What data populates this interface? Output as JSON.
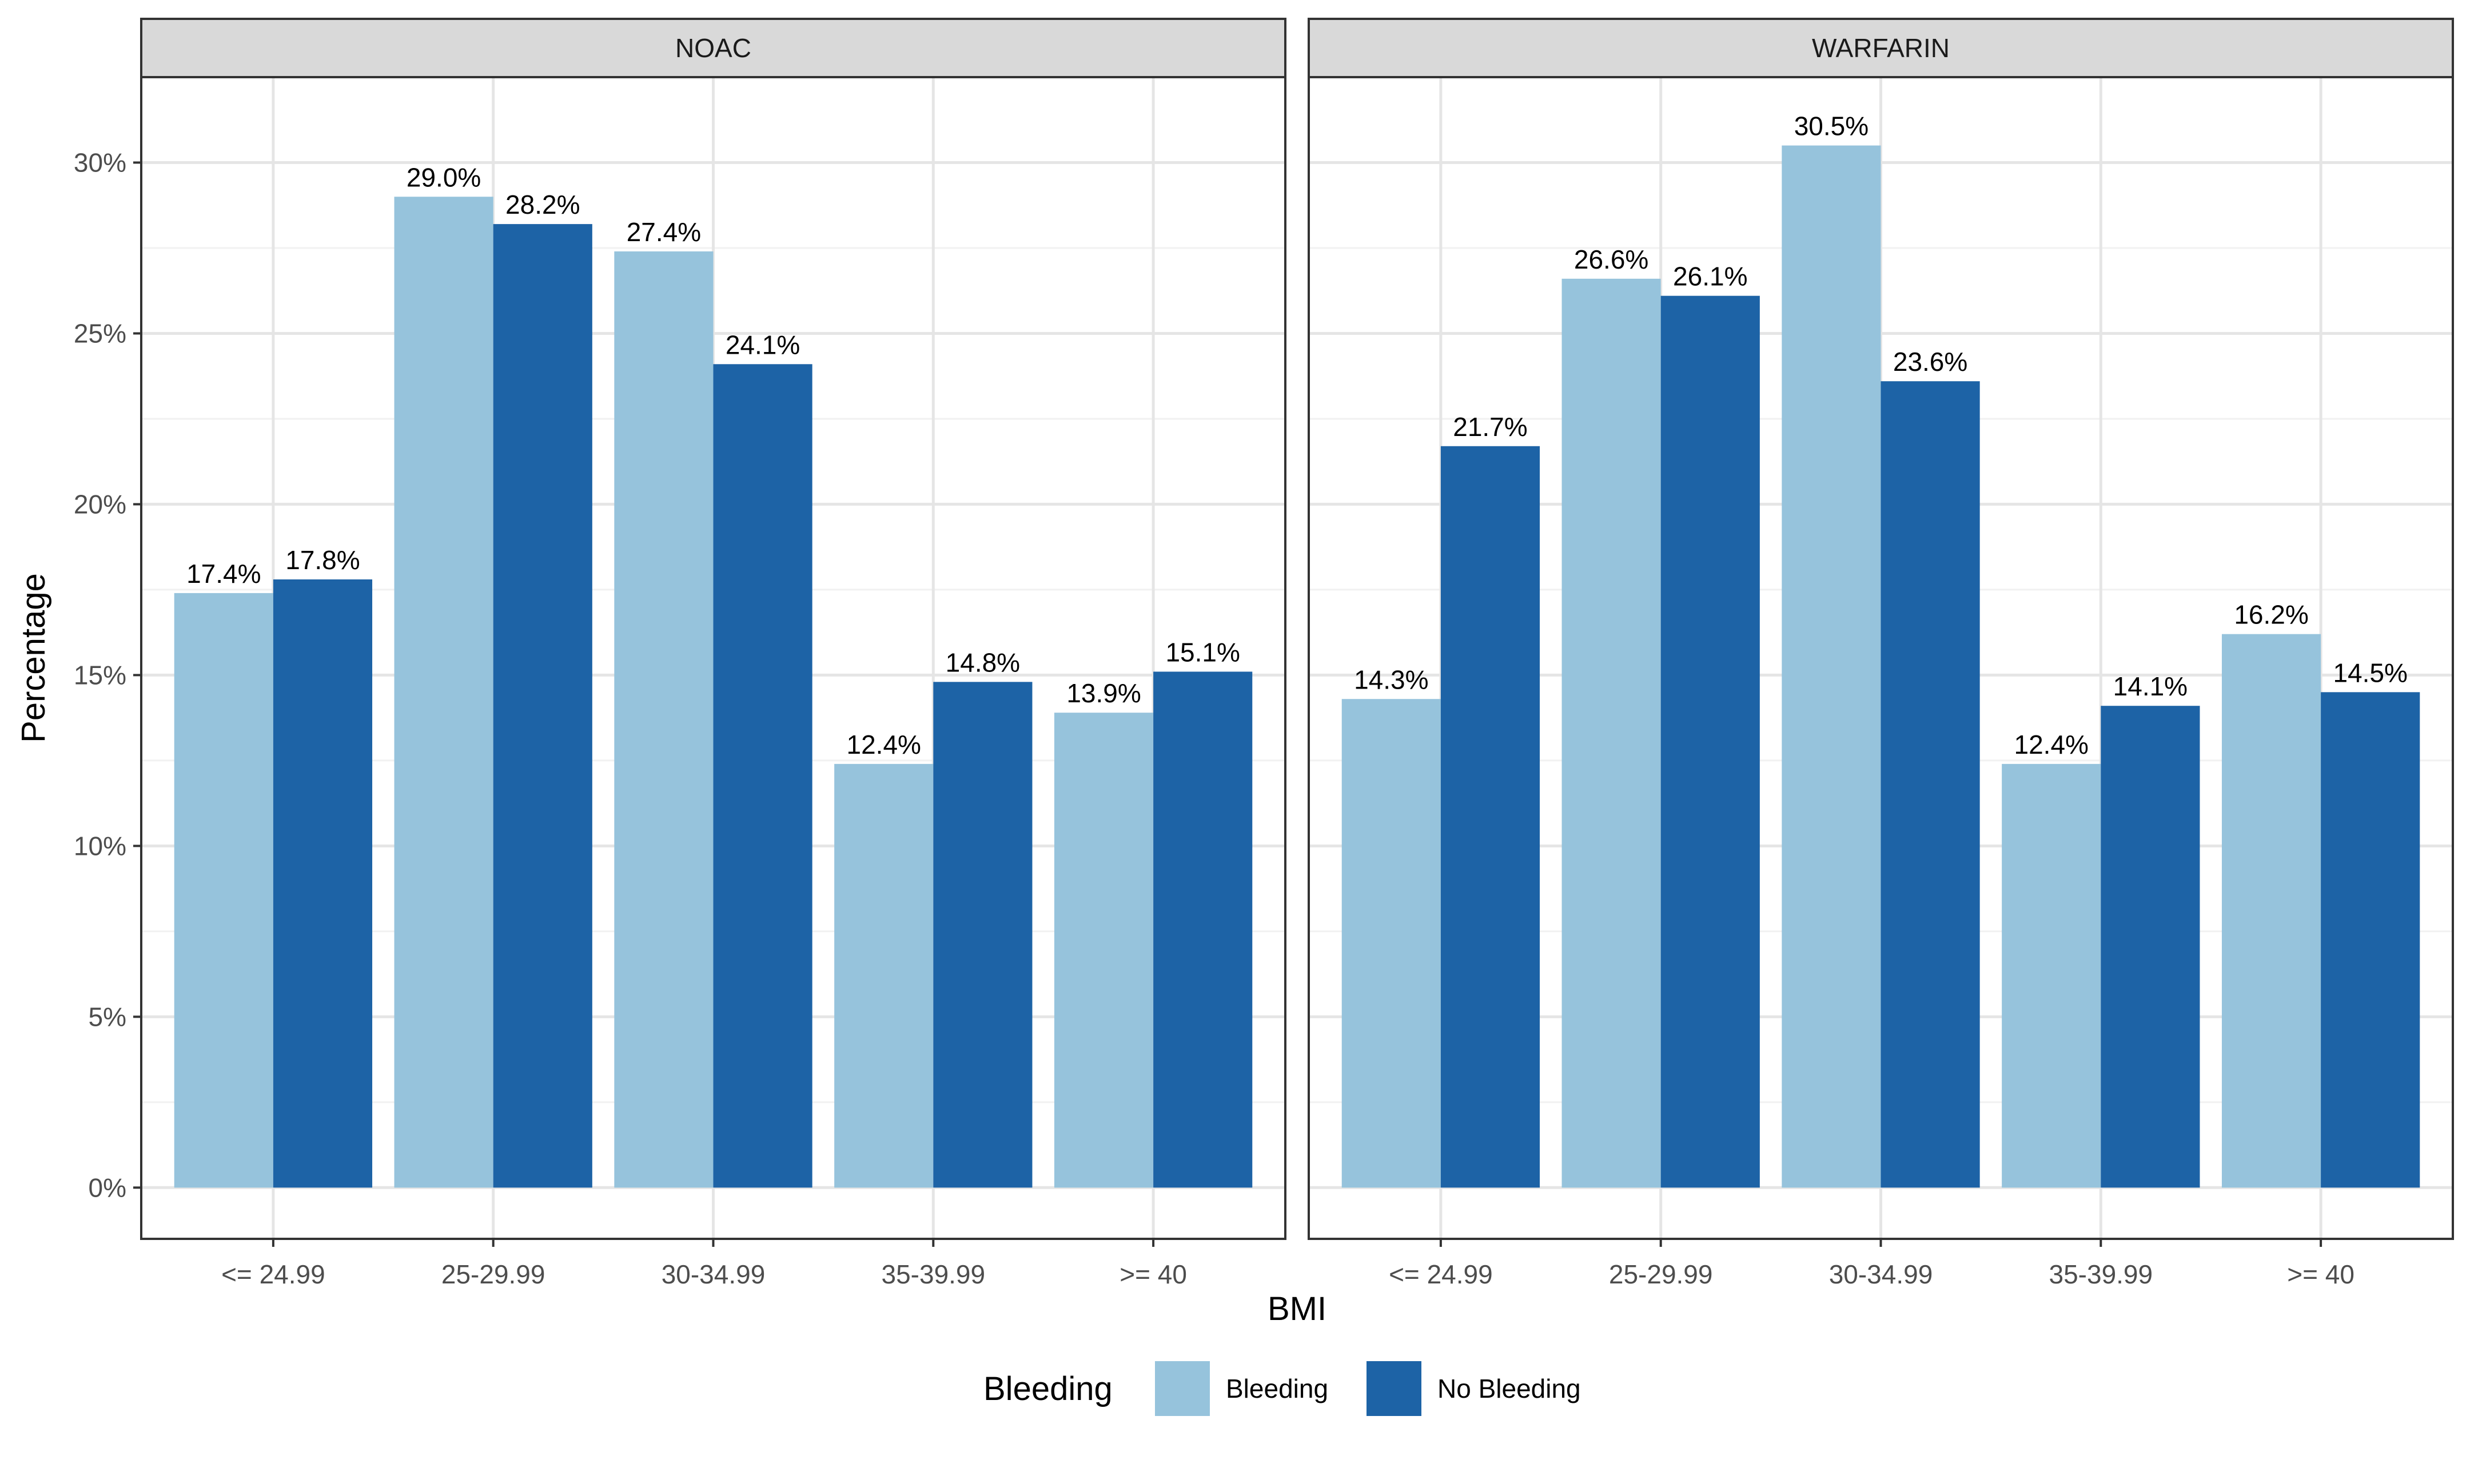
{
  "chart_data": {
    "type": "bar",
    "xlabel": "BMI",
    "ylabel": "Percentage",
    "ylim": [
      -1.5,
      32.5
    ],
    "y_ticks": [
      {
        "value": 0,
        "label": "0%"
      },
      {
        "value": 5,
        "label": "5%"
      },
      {
        "value": 10,
        "label": "10%"
      },
      {
        "value": 15,
        "label": "15%"
      },
      {
        "value": 20,
        "label": "20%"
      },
      {
        "value": 25,
        "label": "25%"
      },
      {
        "value": 30,
        "label": "30%"
      }
    ],
    "categories": [
      "<= 24.99",
      "25-29.99",
      "30-34.99",
      "35-39.99",
      ">= 40"
    ],
    "grid": true,
    "legend": {
      "title": "Bleeding",
      "position": "bottom",
      "entries": [
        "Bleeding",
        "No Bleeding"
      ]
    },
    "colors": {
      "Bleeding": "#96c3dc",
      "No Bleeding": "#1d63a6"
    },
    "panels": [
      {
        "strip": "NOAC",
        "series": [
          {
            "name": "Bleeding",
            "values": [
              17.4,
              29.0,
              27.4,
              12.4,
              13.9
            ],
            "labels": [
              "17.4%",
              "29.0%",
              "27.4%",
              "12.4%",
              "13.9%"
            ]
          },
          {
            "name": "No Bleeding",
            "values": [
              17.8,
              28.2,
              24.1,
              14.8,
              15.1
            ],
            "labels": [
              "17.8%",
              "28.2%",
              "24.1%",
              "14.8%",
              "15.1%"
            ]
          }
        ]
      },
      {
        "strip": "WARFARIN",
        "series": [
          {
            "name": "Bleeding",
            "values": [
              14.3,
              26.6,
              30.5,
              12.4,
              16.2
            ],
            "labels": [
              "14.3%",
              "26.6%",
              "30.5%",
              "12.4%",
              "16.2%"
            ]
          },
          {
            "name": "No Bleeding",
            "values": [
              21.7,
              26.1,
              23.6,
              14.1,
              14.5
            ],
            "labels": [
              "21.7%",
              "26.1%",
              "23.6%",
              "14.1%",
              "14.5%"
            ]
          }
        ]
      }
    ]
  }
}
